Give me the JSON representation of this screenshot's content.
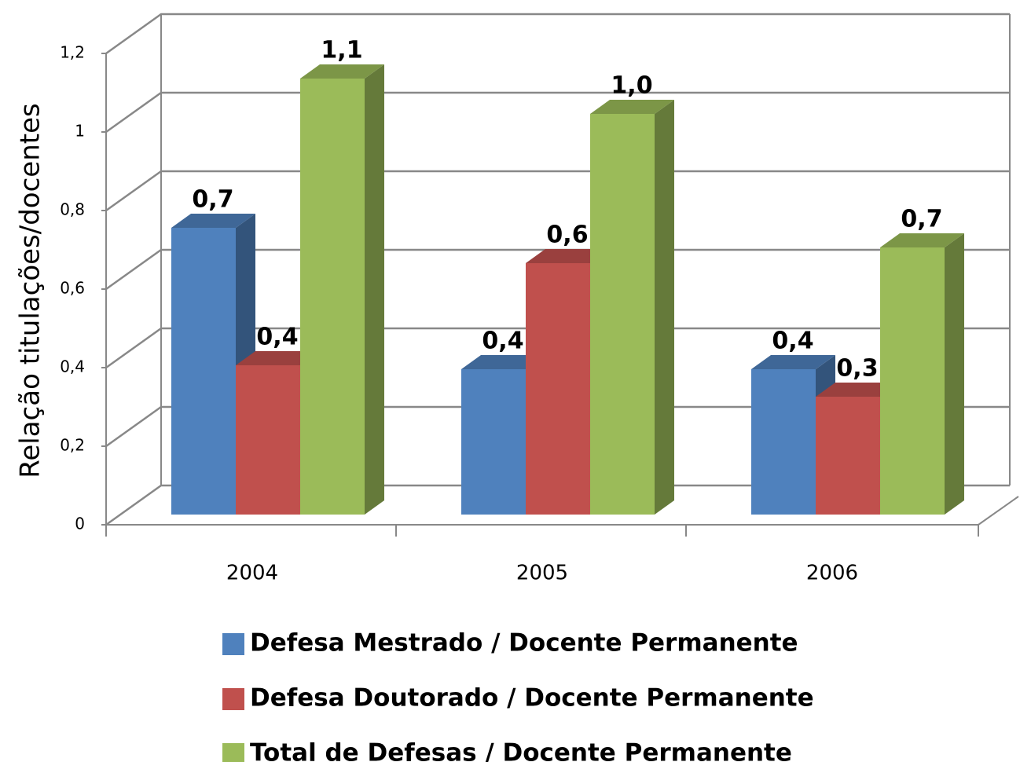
{
  "chart_data": {
    "type": "bar3d",
    "y_axis_label": "Relação titulações/docentes",
    "categories": [
      "2004",
      "2005",
      "2006"
    ],
    "ylim": [
      0,
      1.2
    ],
    "yticks": [
      0,
      {
        "value": 0.2,
        "label": "0,2"
      },
      {
        "value": 0.4,
        "label": "0,4"
      },
      {
        "value": 0.6,
        "label": "0,6"
      },
      {
        "value": 0.8,
        "label": "0,8"
      },
      1,
      {
        "value": 1.2,
        "label": "1,2"
      }
    ],
    "grid": true,
    "legend": "bottom",
    "series": [
      {
        "name": "Defesa Mestrado / Docente Permanente",
        "color": "#4f81bd",
        "values": [
          0.73,
          0.37,
          0.37
        ],
        "value_labels": [
          "0,7",
          "0,4",
          "0,4"
        ]
      },
      {
        "name": "Defesa Doutorado / Docente Permanente",
        "color": "#c0504d",
        "values": [
          0.38,
          0.64,
          0.3
        ],
        "value_labels": [
          "0,4",
          "0,6",
          "0,3"
        ]
      },
      {
        "name": "Total de Defesas / Docente Permanente",
        "color": "#9bbb59",
        "values": [
          1.11,
          1.02,
          0.68
        ],
        "value_labels": [
          "1,1",
          "1,0",
          "0,7"
        ]
      }
    ]
  }
}
